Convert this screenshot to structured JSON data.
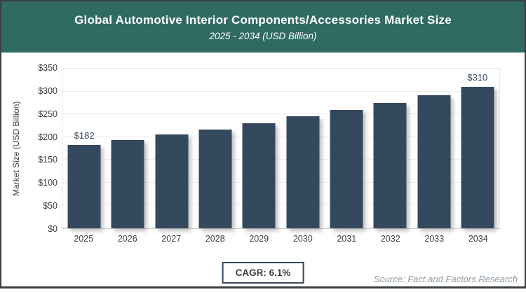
{
  "header": {
    "title": "Global Automotive Interior Components/Accessories Market Size",
    "subtitle": "2025 - 2034 (USD Billion)"
  },
  "chart_data": {
    "type": "bar",
    "title": "Global Automotive Interior Components/Accessories Market Size",
    "subtitle": "2025 - 2034 (USD Billion)",
    "categories": [
      "2025",
      "2026",
      "2027",
      "2028",
      "2029",
      "2030",
      "2031",
      "2032",
      "2033",
      "2034"
    ],
    "values": [
      182,
      193,
      205,
      217,
      231,
      245,
      260,
      275,
      292,
      310
    ],
    "value_labels": [
      "$182",
      "",
      "",
      "",
      "",
      "",
      "",
      "",
      "",
      "$310"
    ],
    "xlabel": "",
    "ylabel": "Market Size (USD Billion)",
    "ylim": [
      0,
      350
    ],
    "ytick_step": 50,
    "ytick_prefix": "$",
    "grid": "horizontal",
    "legend": "none"
  },
  "footer": {
    "cagr_label": "CAGR: 6.1%",
    "source": "Source: Fact and Factors Research"
  },
  "colors": {
    "header_bg": "#2F6A63",
    "header_text": "#ffffff",
    "bar": "#35495E",
    "axis_text": "#3d3d3d",
    "gridline": "#ececec",
    "plot_border": "#e7e7e7",
    "card_border": "#3a3f41",
    "cagr_border": "#35495E",
    "cagr_text": "#3b4147",
    "source_text": "#8e9ba5"
  }
}
